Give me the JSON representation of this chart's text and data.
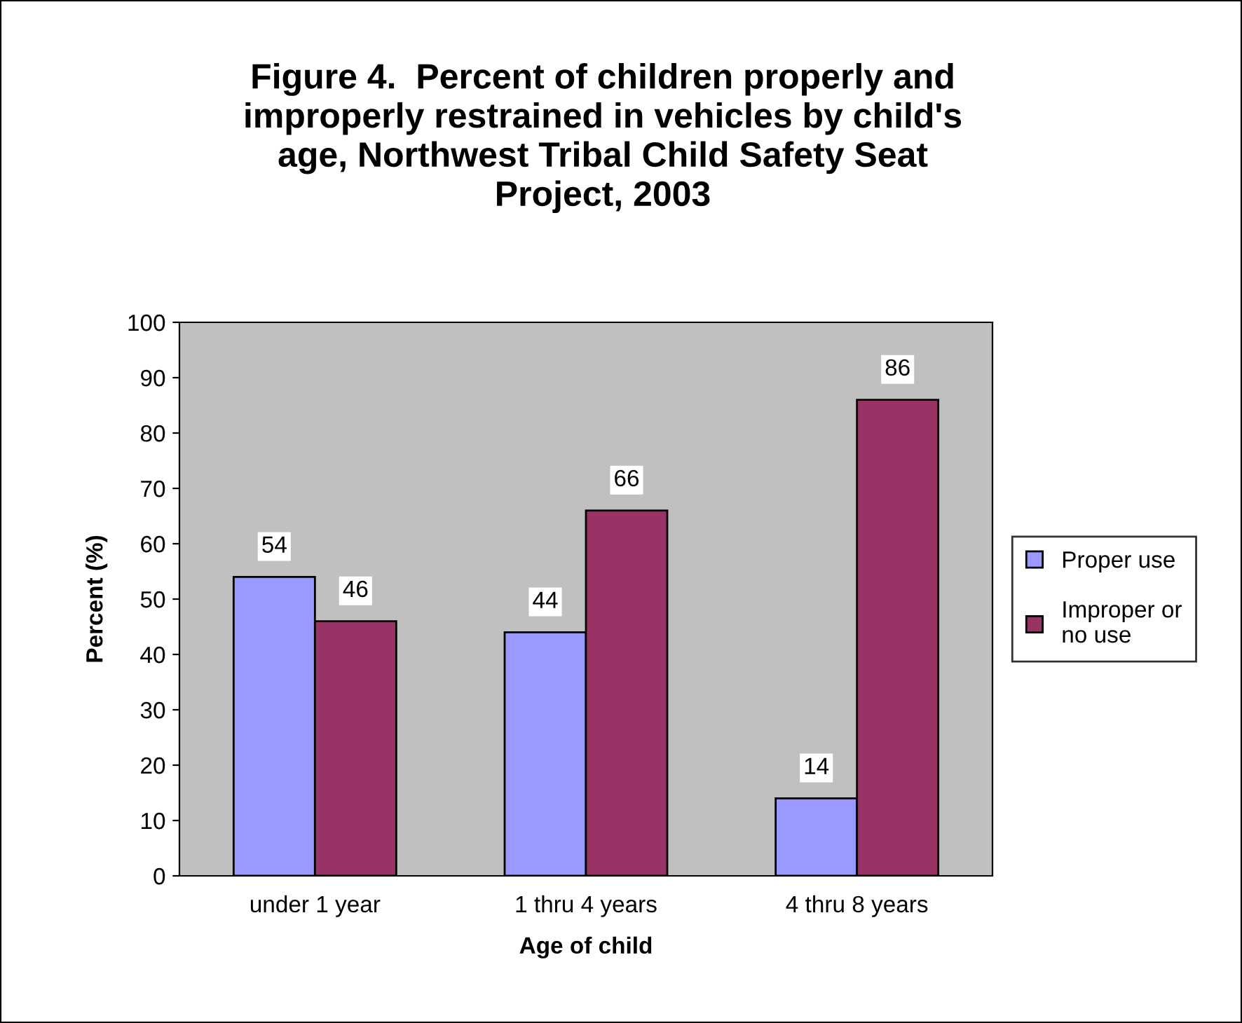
{
  "chart_data": {
    "type": "bar",
    "title": "Figure 4.  Percent of children properly and improperly restrained in vehicles by child's age, Northwest Tribal Child Safety Seat Project, 2003",
    "xlabel": "Age of child",
    "ylabel": "Percent (%)",
    "categories": [
      "under 1 year",
      "1 thru 4 years",
      "4 thru 8 years"
    ],
    "series": [
      {
        "name": "Proper use",
        "color": "#9999ff",
        "values": [
          54,
          44,
          14
        ]
      },
      {
        "name": "Improper or no use",
        "color": "#993366",
        "values": [
          46,
          66,
          86
        ]
      }
    ],
    "ylim": [
      0,
      100
    ],
    "yticks": [
      0,
      10,
      20,
      30,
      40,
      50,
      60,
      70,
      80,
      90,
      100
    ],
    "data_labels": true,
    "grid": false,
    "legend": "right"
  }
}
